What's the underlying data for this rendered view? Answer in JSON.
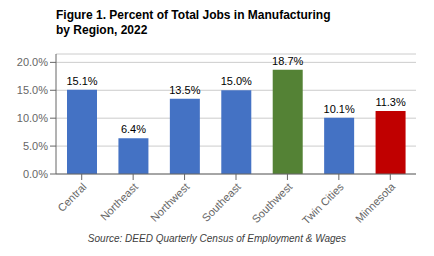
{
  "chart_data": {
    "type": "bar",
    "title": "Figure 1. Percent of Total Jobs in Manufacturing\nby Region, 2022",
    "categories": [
      "Central",
      "Northeast",
      "Northwest",
      "Southeast",
      "Southwest",
      "Twin Cities",
      "Minnesota"
    ],
    "values": [
      15.1,
      6.4,
      13.5,
      15.0,
      18.7,
      10.1,
      11.3
    ],
    "value_labels": [
      "15.1%",
      "6.4%",
      "13.5%",
      "15.0%",
      "18.7%",
      "10.1%",
      "11.3%"
    ],
    "data_labels": true,
    "colors": [
      "#4472C4",
      "#4472C4",
      "#4472C4",
      "#4472C4",
      "#548235",
      "#4472C4",
      "#C00000"
    ],
    "ylim": [
      0,
      21.5
    ],
    "yticks": [
      {
        "value": 0,
        "label": "0.0%"
      },
      {
        "value": 5,
        "label": "5.0%"
      },
      {
        "value": 10,
        "label": "10.0%"
      },
      {
        "value": 15,
        "label": "15.0%"
      },
      {
        "value": 20,
        "label": "20.0%"
      }
    ],
    "grid": true,
    "annotations": [
      "Source: DEED Quarterly Census of Employment & Wages"
    ]
  }
}
